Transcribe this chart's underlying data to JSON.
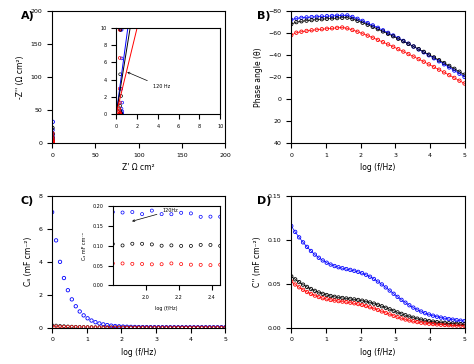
{
  "colors": [
    "blue",
    "black",
    "red"
  ],
  "nyquist_xlabel": "Z' Ω cm²",
  "nyquist_ylabel": "-Z'' (Ω cm²)",
  "phase_xlabel": "log (f/Hz)",
  "phase_ylabel": "Phase angle (θ)",
  "ca_xlabel": "log (f/Hz)",
  "ca_ylabel": "Cₐ (mF cm⁻²)",
  "cpp_xlabel": "log (f/Hz)",
  "cpp_ylabel": "C'' (mF cm⁻²)",
  "ca_inset_xlabel": "log (f/Hz)",
  "ca_inset_ylabel": "Cₐ mF cm⁻²"
}
